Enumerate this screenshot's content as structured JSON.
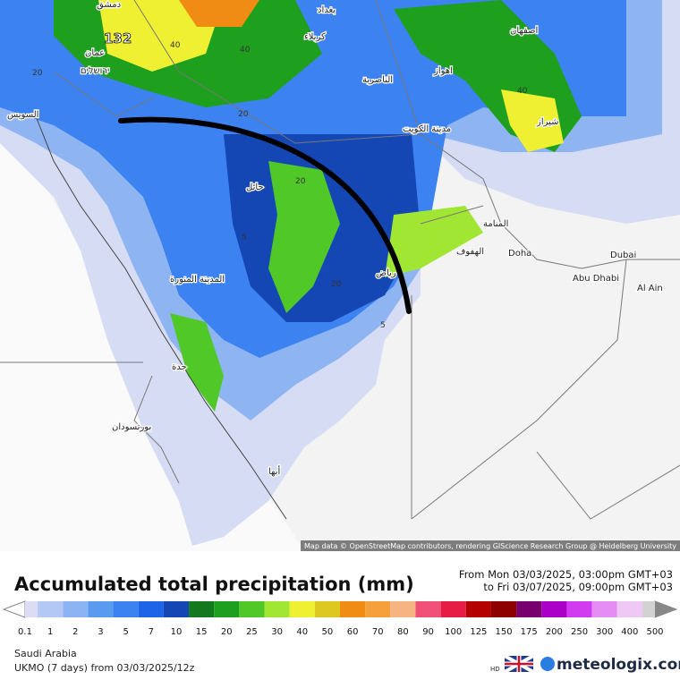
{
  "map": {
    "max_label": "132",
    "cities": [
      "دمشق",
      "بغداد",
      "كربلاء",
      "اصفهان",
      "عمان",
      "ירושלים",
      "اهواز",
      "الناصرية",
      "السويس",
      "شيراز",
      "مدينة الكويت",
      "حائل",
      "المنامة",
      "الهفوف",
      "Doha",
      "Dubai",
      "Abu Dhabi",
      "Al Ain",
      "رياض",
      "المدينة المنورة",
      "جدة",
      "بورتسودان",
      "أبها"
    ],
    "contours": [
      "40",
      "40",
      "40",
      "20",
      "20",
      "20",
      "20",
      "5",
      "5"
    ],
    "attribution": "Map data © OpenStreetMap contributors, rendering GIScience Research Group @ Heidelberg University"
  },
  "legend": {
    "title": "Accumulated total precipitation (mm)",
    "time_from": "From Mon 03/03/2025, 03:00pm GMT+03",
    "time_to": "to Fri 03/07/2025, 09:00pm GMT+03",
    "ticks": [
      0.1,
      1,
      2,
      3,
      5,
      7,
      10,
      15,
      20,
      25,
      30,
      40,
      50,
      60,
      70,
      80,
      90,
      100,
      125,
      150,
      175,
      200,
      250,
      300,
      400,
      500
    ],
    "colors": [
      "#dcdcf5",
      "#b4c8f5",
      "#8cb4f5",
      "#5a9bf0",
      "#3c82f0",
      "#1e64e6",
      "#1446b4",
      "#14781e",
      "#1ea01e",
      "#50c828",
      "#a0e632",
      "#f0f032",
      "#dcc81e",
      "#f08c14",
      "#f5a03c",
      "#f5b482",
      "#f05078",
      "#e61e46",
      "#b40000",
      "#8c0000",
      "#78006e",
      "#aa00c8",
      "#d23cf0",
      "#e68cf5",
      "#f0c8f5",
      "#d2d2d2"
    ]
  },
  "footer": {
    "region": "Saudi Arabia",
    "model": "UKMO (7 days) from  03/03/2025/12z",
    "hd": "HD",
    "brand": "meteologix.com"
  }
}
